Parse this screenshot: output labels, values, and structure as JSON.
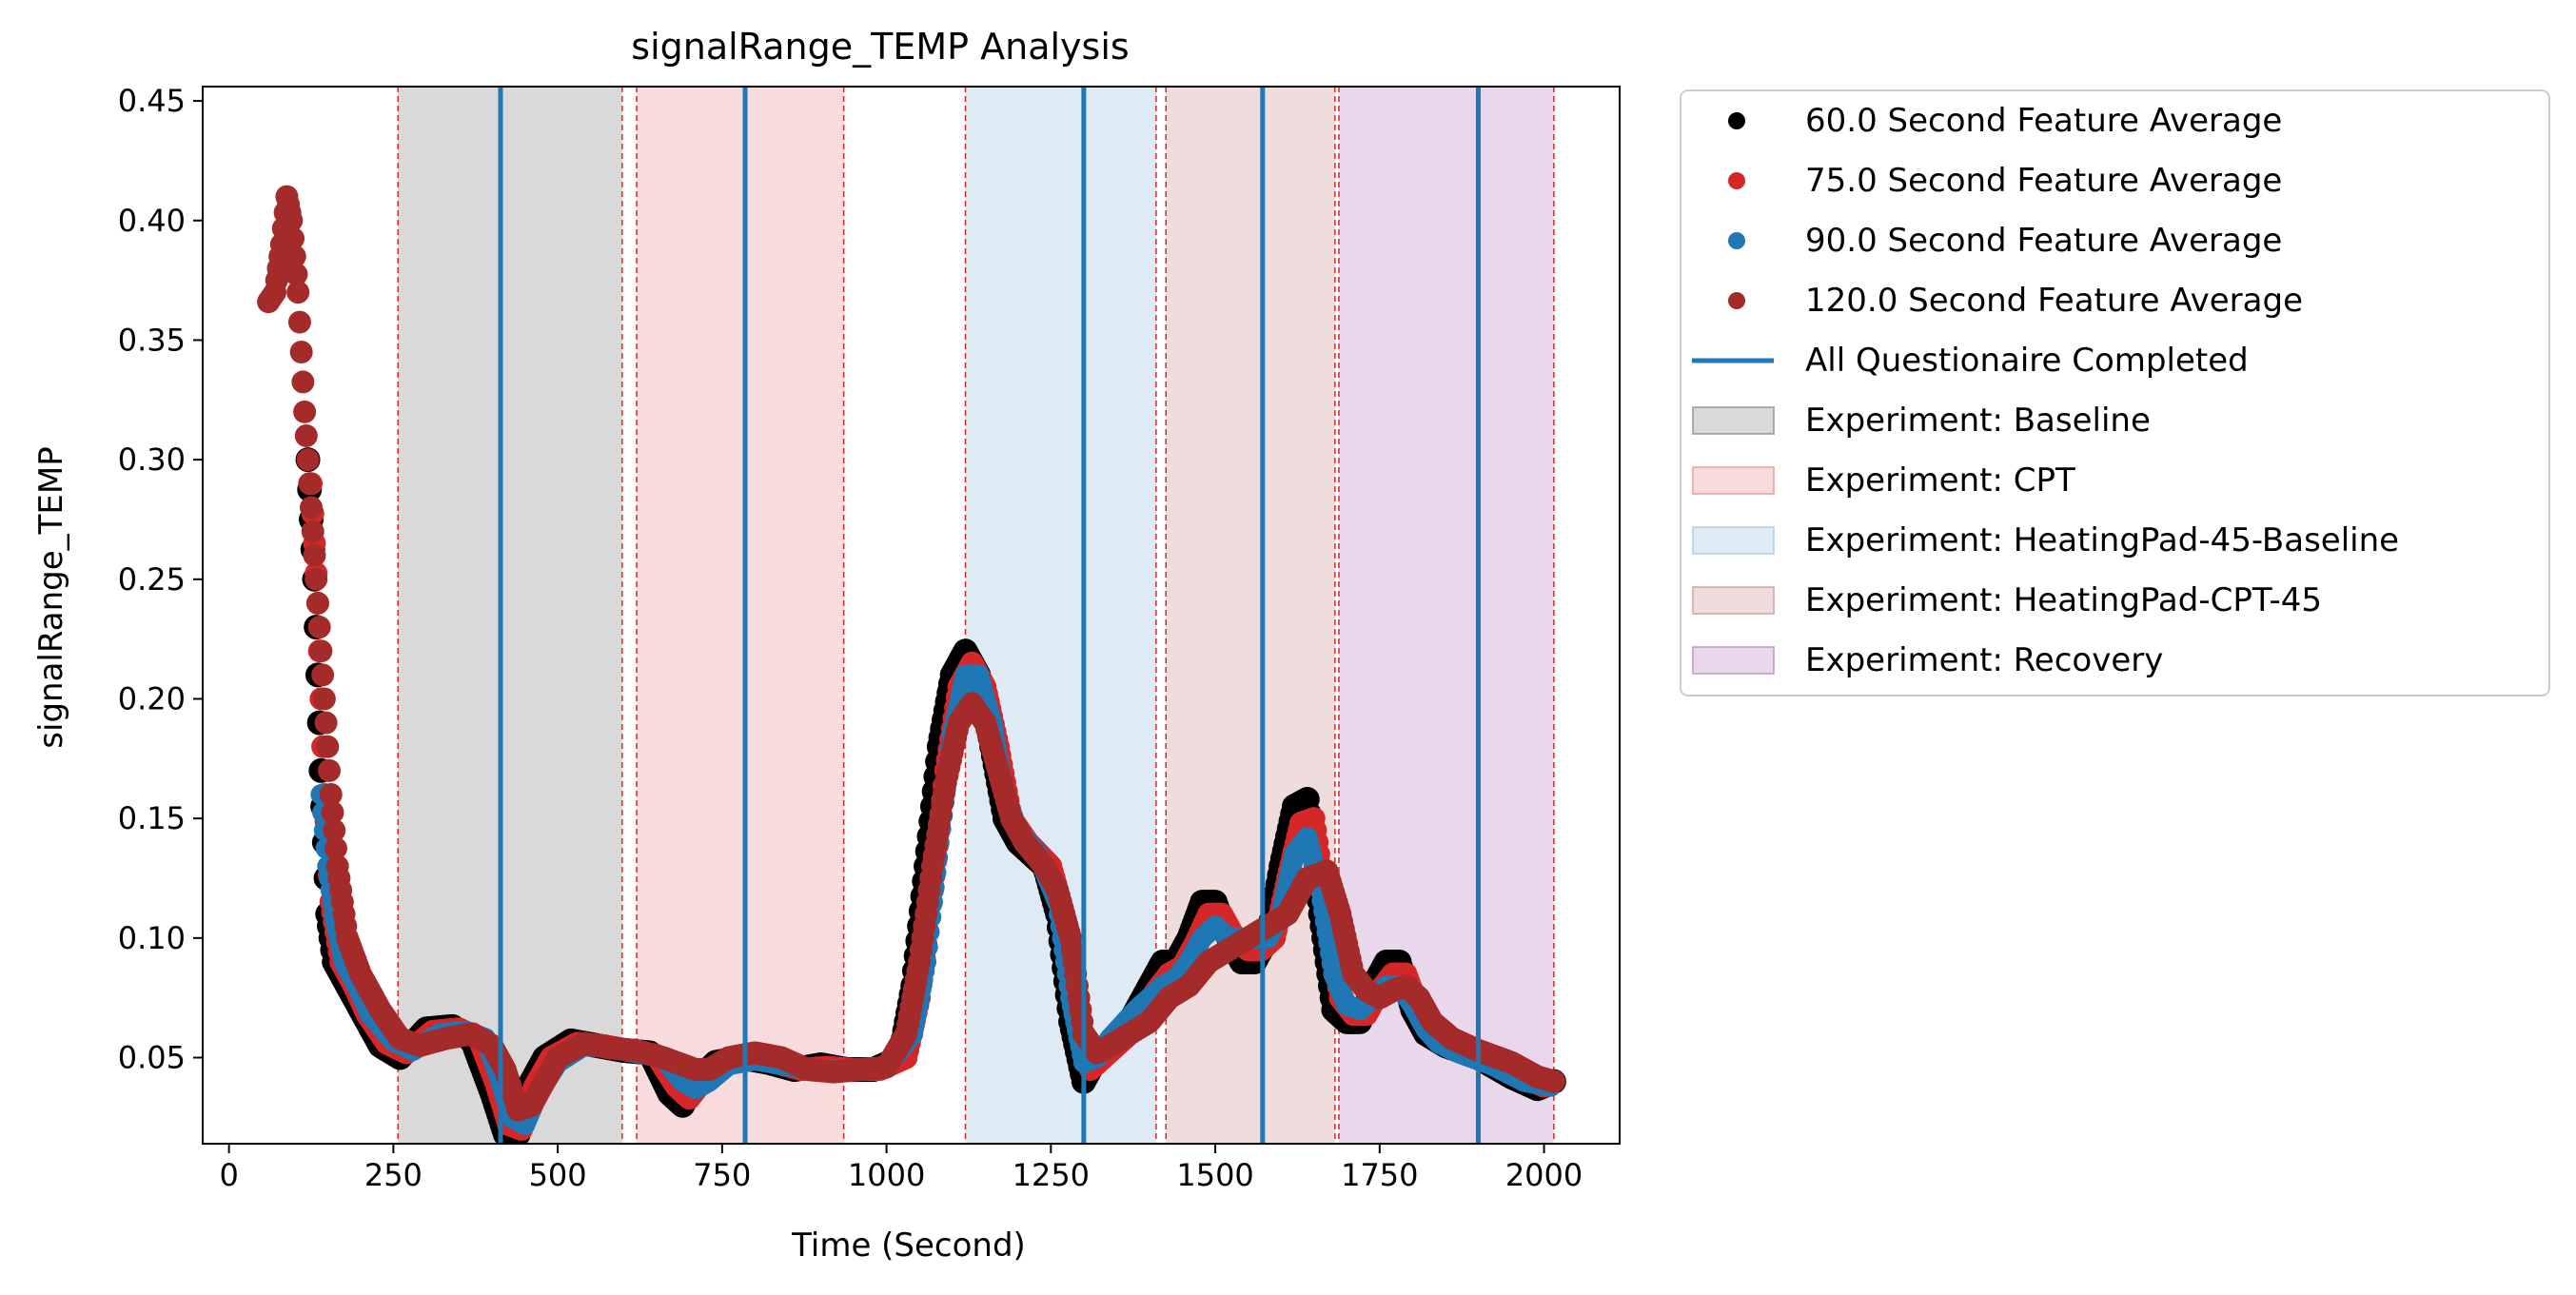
{
  "chart_data": {
    "type": "scatter",
    "title": "signalRange_TEMP Analysis",
    "xlabel": "Time (Second)",
    "ylabel": "signalRange_TEMP",
    "xlim": [
      -40,
      2115
    ],
    "ylim": [
      0.014,
      0.456
    ],
    "xticks": [
      0,
      250,
      500,
      750,
      1000,
      1250,
      1500,
      1750,
      2000
    ],
    "xtick_labels": [
      "0",
      "250",
      "500",
      "750",
      "1000",
      "1250",
      "1500",
      "1750",
      "2000"
    ],
    "yticks": [
      0.05,
      0.1,
      0.15,
      0.2,
      0.25,
      0.3,
      0.35,
      0.4,
      0.45
    ],
    "ytick_labels": [
      "0.05",
      "0.10",
      "0.15",
      "0.20",
      "0.25",
      "0.30",
      "0.35",
      "0.40",
      "0.45"
    ],
    "grid": false,
    "legend_position": "outside right",
    "spans": [
      {
        "label": "Experiment: Baseline",
        "x0": 257,
        "x1": 598,
        "color": "#808080",
        "alpha": 0.3
      },
      {
        "label": "Experiment: CPT",
        "x0": 620,
        "x1": 935,
        "color": "#e8888f",
        "alpha": 0.3
      },
      {
        "label": "Experiment: HeatingPad-45-Baseline",
        "x0": 1120,
        "x1": 1410,
        "color": "#a0c4e0",
        "alpha": 0.35
      },
      {
        "label": "Experiment: HeatingPad-CPT-45",
        "x0": 1425,
        "x1": 1682,
        "color": "#c9908f",
        "alpha": 0.3
      },
      {
        "label": "Experiment: Recovery",
        "x0": 1688,
        "x1": 2015,
        "color": "#b57fc0",
        "alpha": 0.3
      }
    ],
    "boundary_lines": [
      257,
      598,
      620,
      935,
      1120,
      1410,
      1425,
      1682,
      1688,
      2015
    ],
    "questionnaire_lines": {
      "label": "All Questionaire Completed",
      "color": "#1f77b4",
      "x": [
        413,
        785,
        1300,
        1572,
        1900
      ]
    },
    "series": [
      {
        "name": "60.0 Second Feature Average",
        "color": "#000000",
        "x": [
          120,
          130,
          140,
          150,
          160,
          180,
          200,
          230,
          260,
          300,
          340,
          370,
          400,
          420,
          440,
          460,
          480,
          520,
          560,
          600,
          640,
          670,
          690,
          710,
          740,
          780,
          820,
          860,
          900,
          940,
          980,
          1020,
          1040,
          1060,
          1080,
          1100,
          1120,
          1140,
          1160,
          1180,
          1200,
          1240,
          1260,
          1280,
          1300,
          1320,
          1360,
          1400,
          1420,
          1440,
          1460,
          1480,
          1500,
          1520,
          1540,
          1560,
          1580,
          1600,
          1620,
          1640,
          1660,
          1680,
          1700,
          1720,
          1740,
          1760,
          1780,
          1800,
          1820,
          1850,
          1900,
          1950,
          1990,
          2015
        ],
        "values": [
          0.3,
          0.25,
          0.17,
          0.11,
          0.09,
          0.08,
          0.07,
          0.055,
          0.05,
          0.062,
          0.063,
          0.057,
          0.035,
          0.018,
          0.018,
          0.04,
          0.05,
          0.057,
          0.055,
          0.053,
          0.052,
          0.035,
          0.03,
          0.04,
          0.048,
          0.05,
          0.048,
          0.045,
          0.047,
          0.045,
          0.045,
          0.05,
          0.08,
          0.13,
          0.18,
          0.21,
          0.22,
          0.21,
          0.18,
          0.15,
          0.14,
          0.13,
          0.11,
          0.065,
          0.04,
          0.05,
          0.06,
          0.08,
          0.09,
          0.09,
          0.1,
          0.115,
          0.115,
          0.1,
          0.09,
          0.09,
          0.1,
          0.13,
          0.155,
          0.158,
          0.11,
          0.07,
          0.065,
          0.065,
          0.08,
          0.09,
          0.09,
          0.07,
          0.06,
          0.055,
          0.05,
          0.042,
          0.037,
          0.04
        ]
      },
      {
        "name": "75.0 Second Feature Average",
        "color": "#d62728",
        "x": [
          125,
          135,
          145,
          155,
          170,
          190,
          210,
          240,
          270,
          310,
          350,
          380,
          405,
          425,
          445,
          465,
          490,
          530,
          570,
          610,
          650,
          680,
          700,
          720,
          750,
          790,
          830,
          870,
          910,
          950,
          990,
          1030,
          1050,
          1070,
          1090,
          1110,
          1130,
          1150,
          1170,
          1190,
          1215,
          1250,
          1270,
          1290,
          1310,
          1330,
          1370,
          1410,
          1430,
          1450,
          1470,
          1490,
          1510,
          1530,
          1550,
          1570,
          1590,
          1610,
          1630,
          1650,
          1670,
          1690,
          1710,
          1730,
          1750,
          1770,
          1790,
          1810,
          1830,
          1860,
          1910,
          1960,
          2000,
          2015
        ],
        "values": [
          0.29,
          0.24,
          0.16,
          0.115,
          0.09,
          0.08,
          0.068,
          0.056,
          0.052,
          0.061,
          0.062,
          0.058,
          0.04,
          0.022,
          0.02,
          0.038,
          0.05,
          0.056,
          0.055,
          0.053,
          0.051,
          0.038,
          0.033,
          0.04,
          0.047,
          0.05,
          0.048,
          0.045,
          0.046,
          0.045,
          0.045,
          0.05,
          0.075,
          0.12,
          0.17,
          0.205,
          0.215,
          0.205,
          0.18,
          0.15,
          0.14,
          0.13,
          0.11,
          0.07,
          0.045,
          0.05,
          0.06,
          0.078,
          0.085,
          0.088,
          0.098,
          0.11,
          0.11,
          0.1,
          0.095,
          0.095,
          0.1,
          0.125,
          0.148,
          0.15,
          0.11,
          0.075,
          0.068,
          0.068,
          0.078,
          0.085,
          0.085,
          0.07,
          0.06,
          0.055,
          0.05,
          0.043,
          0.038,
          0.04
        ]
      },
      {
        "name": "90.0 Second Feature Average",
        "color": "#1f77b4",
        "x": [
          140,
          150,
          160,
          175,
          195,
          215,
          250,
          280,
          320,
          360,
          390,
          410,
          430,
          450,
          470,
          500,
          540,
          580,
          620,
          660,
          690,
          710,
          730,
          760,
          800,
          840,
          880,
          920,
          960,
          1000,
          1040,
          1060,
          1080,
          1100,
          1120,
          1140,
          1160,
          1180,
          1200,
          1230,
          1260,
          1280,
          1300,
          1320,
          1340,
          1380,
          1420,
          1440,
          1460,
          1480,
          1500,
          1520,
          1540,
          1560,
          1580,
          1600,
          1620,
          1640,
          1660,
          1680,
          1700,
          1720,
          1740,
          1760,
          1780,
          1800,
          1820,
          1840,
          1870,
          1920,
          1970,
          2010
        ],
        "values": [
          0.16,
          0.13,
          0.11,
          0.09,
          0.08,
          0.068,
          0.057,
          0.053,
          0.06,
          0.061,
          0.058,
          0.043,
          0.025,
          0.022,
          0.035,
          0.048,
          0.055,
          0.054,
          0.052,
          0.05,
          0.04,
          0.037,
          0.04,
          0.047,
          0.049,
          0.047,
          0.045,
          0.045,
          0.045,
          0.046,
          0.06,
          0.09,
          0.14,
          0.185,
          0.21,
          0.21,
          0.19,
          0.16,
          0.145,
          0.135,
          0.115,
          0.075,
          0.048,
          0.05,
          0.058,
          0.07,
          0.08,
          0.083,
          0.09,
          0.1,
          0.105,
          0.1,
          0.1,
          0.1,
          0.1,
          0.11,
          0.135,
          0.142,
          0.12,
          0.085,
          0.072,
          0.07,
          0.075,
          0.08,
          0.08,
          0.072,
          0.062,
          0.056,
          0.052,
          0.047,
          0.04,
          0.038
        ]
      },
      {
        "name": "120.0 Second Feature Average",
        "color": "#a52a2a",
        "x": [
          60,
          70,
          80,
          88,
          95,
          105,
          115,
          125,
          135,
          145,
          155,
          165,
          180,
          200,
          230,
          260,
          290,
          330,
          370,
          400,
          420,
          440,
          460,
          480,
          500,
          540,
          580,
          620,
          660,
          690,
          710,
          730,
          760,
          800,
          840,
          880,
          920,
          960,
          1000,
          1030,
          1050,
          1070,
          1090,
          1110,
          1130,
          1150,
          1170,
          1190,
          1210,
          1240,
          1260,
          1280,
          1300,
          1320,
          1340,
          1370,
          1400,
          1430,
          1460,
          1490,
          1520,
          1550,
          1580,
          1610,
          1640,
          1670,
          1690,
          1710,
          1730,
          1750,
          1770,
          1790,
          1810,
          1830,
          1860,
          1900,
          1950,
          1990,
          2015
        ],
        "values": [
          0.366,
          0.37,
          0.39,
          0.41,
          0.4,
          0.37,
          0.32,
          0.28,
          0.24,
          0.2,
          0.16,
          0.13,
          0.1,
          0.085,
          0.07,
          0.058,
          0.055,
          0.058,
          0.06,
          0.055,
          0.045,
          0.028,
          0.03,
          0.04,
          0.05,
          0.056,
          0.054,
          0.053,
          0.05,
          0.047,
          0.045,
          0.045,
          0.05,
          0.052,
          0.05,
          0.045,
          0.044,
          0.045,
          0.046,
          0.06,
          0.09,
          0.13,
          0.165,
          0.19,
          0.198,
          0.19,
          0.17,
          0.15,
          0.14,
          0.13,
          0.12,
          0.1,
          0.06,
          0.052,
          0.055,
          0.06,
          0.065,
          0.075,
          0.08,
          0.09,
          0.095,
          0.1,
          0.105,
          0.11,
          0.125,
          0.128,
          0.11,
          0.085,
          0.078,
          0.075,
          0.078,
          0.08,
          0.075,
          0.065,
          0.058,
          0.053,
          0.048,
          0.042,
          0.04
        ]
      }
    ]
  }
}
